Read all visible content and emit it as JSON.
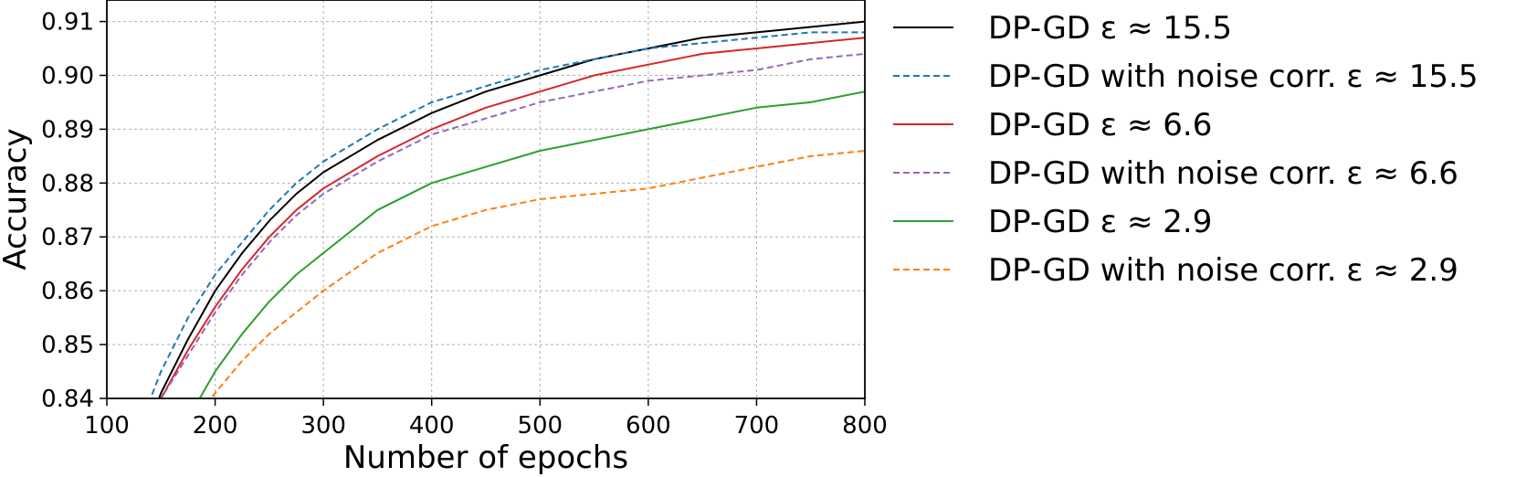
{
  "chart_data": {
    "type": "line",
    "xlabel": "Number of epochs",
    "ylabel": "Accuracy",
    "xlim": [
      100,
      800
    ],
    "ylim": [
      0.84,
      0.914
    ],
    "xticks": [
      "100",
      "200",
      "300",
      "400",
      "500",
      "600",
      "700",
      "800"
    ],
    "yticks": [
      "0.84",
      "0.85",
      "0.86",
      "0.87",
      "0.88",
      "0.89",
      "0.90",
      "0.91"
    ],
    "grid": true,
    "legend_position": "outside-right",
    "series": [
      {
        "name": "DP-GD ε ≈ 15.5",
        "color": "#000000",
        "dash": "solid",
        "x": [
          130,
          150,
          175,
          200,
          225,
          250,
          275,
          300,
          350,
          400,
          450,
          500,
          550,
          600,
          650,
          700,
          750,
          800
        ],
        "y": [
          0.83,
          0.841,
          0.851,
          0.86,
          0.867,
          0.873,
          0.878,
          0.882,
          0.888,
          0.893,
          0.897,
          0.9,
          0.903,
          0.905,
          0.907,
          0.908,
          0.909,
          0.91
        ]
      },
      {
        "name": "DP-GD with noise corr. ε ≈ 15.5",
        "color": "#1f77b4",
        "dash": "dashed",
        "x": [
          125,
          150,
          175,
          200,
          225,
          250,
          275,
          300,
          350,
          400,
          450,
          500,
          550,
          600,
          650,
          700,
          750,
          800
        ],
        "y": [
          0.832,
          0.845,
          0.855,
          0.863,
          0.869,
          0.875,
          0.88,
          0.884,
          0.89,
          0.895,
          0.898,
          0.901,
          0.903,
          0.905,
          0.906,
          0.907,
          0.908,
          0.908
        ]
      },
      {
        "name": "DP-GD ε ≈ 6.6",
        "color": "#d62728",
        "dash": "solid",
        "x": [
          140,
          150,
          175,
          200,
          225,
          250,
          275,
          300,
          350,
          400,
          450,
          500,
          550,
          600,
          650,
          700,
          750,
          800
        ],
        "y": [
          0.836,
          0.84,
          0.849,
          0.857,
          0.864,
          0.87,
          0.875,
          0.879,
          0.885,
          0.89,
          0.894,
          0.897,
          0.9,
          0.902,
          0.904,
          0.905,
          0.906,
          0.907
        ]
      },
      {
        "name": "DP-GD with noise corr. ε ≈ 6.6",
        "color": "#9467bd",
        "dash": "dashed",
        "x": [
          140,
          150,
          175,
          200,
          225,
          250,
          275,
          300,
          350,
          400,
          450,
          500,
          550,
          600,
          650,
          700,
          750,
          800
        ],
        "y": [
          0.836,
          0.84,
          0.848,
          0.856,
          0.863,
          0.869,
          0.874,
          0.878,
          0.884,
          0.889,
          0.892,
          0.895,
          0.897,
          0.899,
          0.9,
          0.901,
          0.903,
          0.904
        ]
      },
      {
        "name": "DP-GD ε ≈ 2.9",
        "color": "#2ca02c",
        "dash": "solid",
        "x": [
          180,
          200,
          225,
          250,
          275,
          300,
          350,
          400,
          450,
          500,
          550,
          600,
          650,
          700,
          750,
          800
        ],
        "y": [
          0.838,
          0.845,
          0.852,
          0.858,
          0.863,
          0.867,
          0.875,
          0.88,
          0.883,
          0.886,
          0.888,
          0.89,
          0.892,
          0.894,
          0.895,
          0.897
        ]
      },
      {
        "name": "DP-GD with noise corr. ε ≈ 2.9",
        "color": "#ff7f0e",
        "dash": "dashed",
        "x": [
          180,
          200,
          225,
          250,
          275,
          300,
          350,
          400,
          450,
          500,
          550,
          600,
          650,
          700,
          750,
          800
        ],
        "y": [
          0.836,
          0.841,
          0.847,
          0.852,
          0.856,
          0.86,
          0.867,
          0.872,
          0.875,
          0.877,
          0.878,
          0.879,
          0.881,
          0.883,
          0.885,
          0.886
        ]
      }
    ]
  }
}
